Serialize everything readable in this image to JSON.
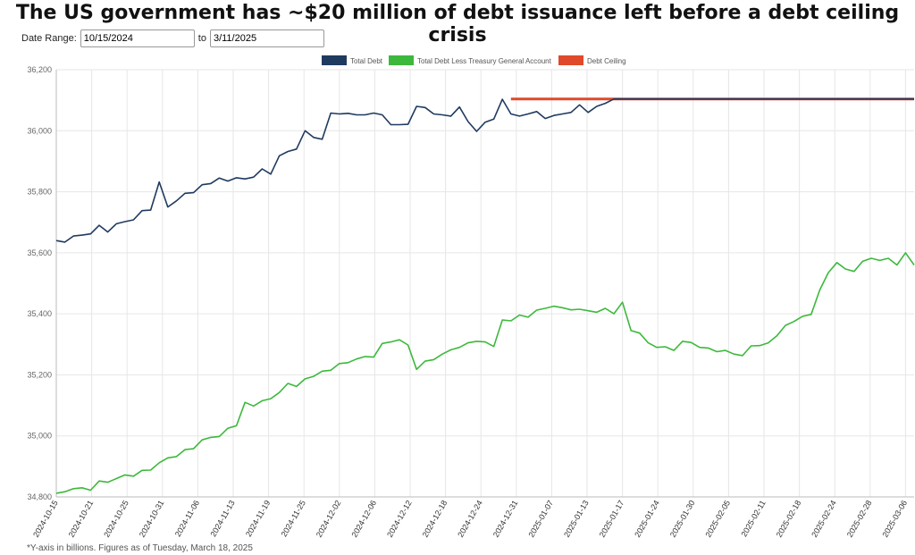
{
  "header": {
    "title": "The US government has ~$20 million of debt issuance left before a debt ceiling crisis"
  },
  "date_range": {
    "label": "Date Range:",
    "start": "10/15/2024",
    "to_label": "to",
    "end": "3/11/2025"
  },
  "footnote": "*Y-axis in billions. Figures as of Tuesday, March 18, 2025",
  "colors": {
    "total_debt": "#1f3a5f",
    "less_tga": "#3cb93c",
    "ceiling": "#e0492b",
    "grid": "#e6e6e6",
    "axis_text": "#666666"
  },
  "chart_data": {
    "type": "line",
    "title": "The US government has ~$20 million of debt issuance left before a debt ceiling crisis",
    "xlabel": "",
    "ylabel": "",
    "ylim": [
      34800,
      36200
    ],
    "yticks": [
      34800,
      35000,
      35200,
      35400,
      35600,
      35800,
      36000,
      36200
    ],
    "ytick_labels": [
      "34,800",
      "35,000",
      "35,200",
      "35,400",
      "35,600",
      "35,800",
      "36,000",
      "36,200"
    ],
    "grid": true,
    "legend_position": "top-center",
    "x_labels": [
      "2024-10-15",
      "2024-10-21",
      "2024-10-25",
      "2024-10-31",
      "2024-11-06",
      "2024-11-13",
      "2024-11-19",
      "2024-11-25",
      "2024-12-02",
      "2024-12-06",
      "2024-12-12",
      "2024-12-18",
      "2024-12-24",
      "2024-12-31",
      "2025-01-07",
      "2025-01-13",
      "2025-01-17",
      "2025-01-24",
      "2025-01-30",
      "2025-02-05",
      "2025-02-11",
      "2025-02-18",
      "2025-02-24",
      "2025-02-28",
      "2025-03-06"
    ],
    "series": [
      {
        "name": "Total Debt",
        "color": "#1f3a5f",
        "values": [
          35640,
          35635,
          35655,
          35658,
          35662,
          35690,
          35668,
          35695,
          35702,
          35708,
          35738,
          35740,
          35832,
          35750,
          35770,
          35795,
          35797,
          35823,
          35827,
          35845,
          35835,
          35846,
          35842,
          35848,
          35875,
          35858,
          35918,
          35932,
          35940,
          36000,
          35978,
          35972,
          36058,
          36055,
          36057,
          36052,
          36052,
          36058,
          36052,
          36020,
          36020,
          36021,
          36080,
          36076,
          36055,
          36052,
          36048,
          36078,
          36030,
          35998,
          36028,
          36038,
          36103,
          36055,
          36048,
          36055,
          36063,
          36040,
          36050,
          36055,
          36060,
          36085,
          36060,
          36080,
          36090,
          36104,
          36104,
          36104,
          36104,
          36104,
          36104,
          36104,
          36104,
          36104,
          36104,
          36104,
          36104,
          36104,
          36104,
          36104,
          36104,
          36104,
          36104,
          36104,
          36104,
          36104,
          36104,
          36104,
          36104,
          36104,
          36104,
          36104,
          36104,
          36104,
          36104,
          36104,
          36104,
          36104,
          36104,
          36104,
          36104
        ]
      },
      {
        "name": "Total Debt Less Treasury General Account",
        "color": "#3cb93c",
        "values": [
          34812,
          34817,
          34827,
          34830,
          34822,
          34852,
          34848,
          34860,
          34872,
          34868,
          34887,
          34888,
          34912,
          34928,
          34932,
          34955,
          34958,
          34987,
          34995,
          34998,
          35025,
          35033,
          35110,
          35098,
          35115,
          35122,
          35142,
          35172,
          35162,
          35187,
          35195,
          35212,
          35215,
          35237,
          35240,
          35252,
          35260,
          35258,
          35303,
          35308,
          35315,
          35298,
          35218,
          35245,
          35250,
          35268,
          35282,
          35290,
          35305,
          35310,
          35308,
          35293,
          35380,
          35377,
          35396,
          35389,
          35412,
          35418,
          35425,
          35420,
          35413,
          35415,
          35410,
          35405,
          35418,
          35400,
          35438,
          35345,
          35337,
          35305,
          35290,
          35292,
          35280,
          35310,
          35306,
          35290,
          35288,
          35276,
          35280,
          35268,
          35263,
          35295,
          35296,
          35305,
          35328,
          35362,
          35375,
          35392,
          35398,
          35478,
          35535,
          35568,
          35547,
          35539,
          35572,
          35582,
          35575,
          35582,
          35560,
          35600,
          35560
        ]
      },
      {
        "name": "Debt Ceiling",
        "color": "#e0492b",
        "start_index": 53,
        "value": 36104
      }
    ]
  }
}
